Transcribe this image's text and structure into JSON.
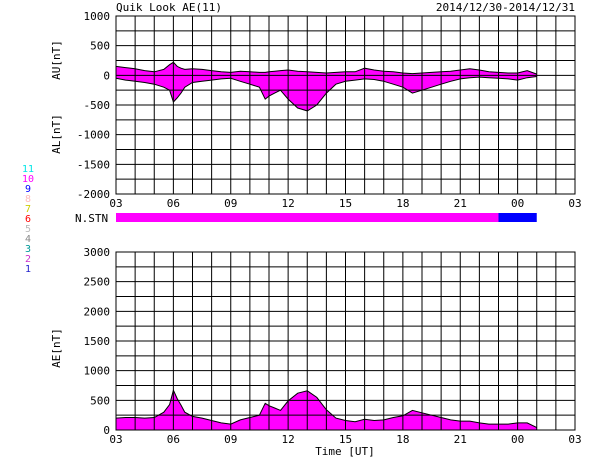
{
  "header": {
    "title": "Quik Look AE(11)",
    "date_range": "2014/12/30-2014/12/31"
  },
  "chart_data": [
    {
      "id": "au_al",
      "type": "area",
      "ylabel_top": "AU[nT]",
      "ylabel_bottom": "AL[nT]",
      "xlabel": "",
      "ylim": [
        -2000,
        1000
      ],
      "yticks": [
        1000,
        500,
        0,
        -500,
        -1000,
        -1500,
        -2000
      ],
      "xlim_hours": [
        0,
        24
      ],
      "xticks": [
        "03",
        "06",
        "09",
        "12",
        "15",
        "18",
        "21",
        "00",
        "03"
      ],
      "grid": true,
      "x_hours": [
        0.0,
        0.5,
        1.0,
        1.5,
        2.0,
        2.5,
        2.8,
        3.0,
        3.2,
        3.4,
        3.6,
        4.0,
        4.5,
        5.0,
        5.5,
        6.0,
        6.5,
        7.0,
        7.5,
        7.8,
        8.0,
        8.3,
        8.6,
        9.0,
        9.5,
        10.0,
        10.5,
        11.0,
        11.5,
        12.0,
        12.5,
        13.0,
        13.5,
        14.0,
        14.5,
        15.0,
        15.5,
        16.0,
        16.5,
        17.0,
        17.5,
        18.0,
        18.5,
        19.0,
        19.5,
        20.0,
        20.5,
        21.0,
        21.5,
        22.0
      ],
      "series": [
        {
          "name": "AU",
          "color": "#ff00ff",
          "values": [
            150,
            130,
            110,
            80,
            60,
            100,
            180,
            220,
            150,
            120,
            100,
            110,
            100,
            80,
            60,
            50,
            70,
            60,
            50,
            50,
            60,
            70,
            80,
            90,
            70,
            60,
            50,
            40,
            50,
            60,
            60,
            120,
            90,
            70,
            60,
            40,
            30,
            40,
            50,
            60,
            70,
            90,
            110,
            90,
            60,
            50,
            40,
            40,
            80,
            20
          ]
        },
        {
          "name": "AL",
          "color": "#ff00ff",
          "values": [
            -50,
            -80,
            -100,
            -120,
            -150,
            -200,
            -250,
            -450,
            -380,
            -300,
            -200,
            -120,
            -100,
            -80,
            -60,
            -50,
            -100,
            -150,
            -200,
            -400,
            -350,
            -300,
            -250,
            -400,
            -550,
            -600,
            -500,
            -300,
            -150,
            -100,
            -80,
            -60,
            -70,
            -100,
            -150,
            -200,
            -300,
            -250,
            -200,
            -150,
            -100,
            -60,
            -40,
            -30,
            -40,
            -50,
            -60,
            -80,
            -40,
            -20
          ]
        }
      ]
    },
    {
      "id": "station_count",
      "type": "bar",
      "label": "N.STN",
      "legend_levels": [
        "11",
        "10",
        "9",
        "8",
        "7",
        "6",
        "5",
        "4",
        "3",
        "2",
        "1"
      ],
      "legend_colors": [
        "#00e5e5",
        "#ff00ff",
        "#0000ff",
        "#ffbbbb",
        "#cccc00",
        "#ff0000",
        "#bbbbbb",
        "#888888",
        "#009999",
        "#cc33cc",
        "#2222cc"
      ],
      "segments": [
        {
          "from_hour": 0.0,
          "to_hour": 20.0,
          "stations": 10
        },
        {
          "from_hour": 20.0,
          "to_hour": 22.0,
          "stations": 9
        }
      ]
    },
    {
      "id": "ae",
      "type": "area",
      "ylabel": "AE[nT]",
      "xlabel": "Time [UT]",
      "ylim": [
        0,
        3000
      ],
      "yticks": [
        3000,
        2500,
        2000,
        1500,
        1000,
        500,
        0
      ],
      "xlim_hours": [
        0,
        24
      ],
      "xticks": [
        "03",
        "06",
        "09",
        "12",
        "15",
        "18",
        "21",
        "00",
        "03"
      ],
      "grid": true,
      "x_hours": [
        0.0,
        0.5,
        1.0,
        1.5,
        2.0,
        2.5,
        2.8,
        3.0,
        3.2,
        3.4,
        3.6,
        4.0,
        4.5,
        5.0,
        5.5,
        6.0,
        6.5,
        7.0,
        7.5,
        7.8,
        8.0,
        8.3,
        8.6,
        9.0,
        9.5,
        10.0,
        10.5,
        11.0,
        11.5,
        12.0,
        12.5,
        13.0,
        13.5,
        14.0,
        14.5,
        15.0,
        15.5,
        16.0,
        16.5,
        17.0,
        17.5,
        18.0,
        18.5,
        19.0,
        19.5,
        20.0,
        20.5,
        21.0,
        21.5,
        22.0
      ],
      "series": [
        {
          "name": "AE",
          "color": "#ff00ff",
          "values": [
            200,
            210,
            210,
            200,
            210,
            300,
            430,
            670,
            530,
            420,
            300,
            230,
            200,
            160,
            120,
            100,
            170,
            210,
            250,
            450,
            410,
            370,
            330,
            490,
            620,
            660,
            550,
            340,
            200,
            160,
            140,
            180,
            160,
            170,
            210,
            240,
            330,
            290,
            250,
            210,
            170,
            150,
            150,
            120,
            100,
            100,
            100,
            120,
            120,
            40
          ]
        }
      ]
    }
  ]
}
